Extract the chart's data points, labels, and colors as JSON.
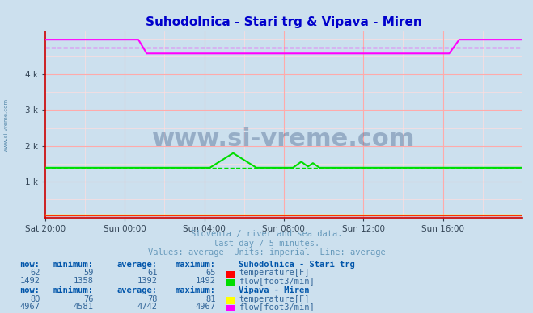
{
  "title": "Suhodolnica - Stari trg & Vipava - Miren",
  "title_color": "#0000cc",
  "bg_color": "#cce0ee",
  "plot_bg_color": "#cce0ee",
  "grid_color_major": "#ffaaaa",
  "grid_color_minor": "#ffdddd",
  "xlabel_ticks": [
    "Sat 20:00",
    "Sun 00:00",
    "Sun 04:00",
    "Sun 08:00",
    "Sun 12:00",
    "Sun 16:00"
  ],
  "ymax": 5200,
  "ymin": 0,
  "watermark": "www.si-vreme.com",
  "subtitle1": "Slovenia / river and sea data.",
  "subtitle2": "last day / 5 minutes.",
  "subtitle3": "Values: average  Units: imperial  Line: average",
  "subtitle_color": "#6699bb",
  "station1_name": "Suhodolnica - Stari trg",
  "station1_temp_now": 62,
  "station1_temp_min": 59,
  "station1_temp_avg": 61,
  "station1_temp_max": 65,
  "station1_flow_now": 1492,
  "station1_flow_min": 1358,
  "station1_flow_avg": 1392,
  "station1_flow_max": 1492,
  "station2_name": "Vipava - Miren",
  "station2_temp_now": 80,
  "station2_temp_min": 76,
  "station2_temp_avg": 78,
  "station2_temp_max": 81,
  "station2_flow_now": 4967,
  "station2_flow_min": 4581,
  "station2_flow_avg": 4742,
  "station2_flow_max": 4967,
  "color_s1_temp": "#ff0000",
  "color_s1_flow": "#00dd00",
  "color_s2_temp": "#ffff00",
  "color_s2_flow": "#ff00ff",
  "label_color": "#0055aa",
  "data_color": "#336699",
  "x_axis_color": "#cc0000",
  "y_axis_color": "#cc0000"
}
